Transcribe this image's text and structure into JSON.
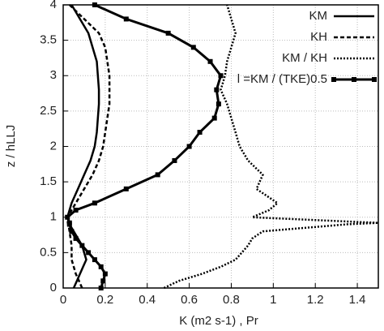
{
  "chart_data": {
    "type": "line",
    "x_label": "K (m2 s-1) , Pr",
    "y_label": "z / hLLJ",
    "y": [
      0,
      0.1,
      0.2,
      0.3,
      0.4,
      0.5,
      0.6,
      0.7,
      0.8,
      0.9,
      0.92,
      1.0,
      1.1,
      1.2,
      1.4,
      1.6,
      1.8,
      2.0,
      2.2,
      2.4,
      2.6,
      2.8,
      3.0,
      3.2,
      3.4,
      3.6,
      3.8,
      4.0
    ],
    "series": [
      {
        "name": "KM",
        "color": "#000000",
        "style": "solid",
        "linewidth": 2.5,
        "marker": false,
        "values": [
          0.05,
          0.065,
          0.08,
          0.095,
          0.11,
          0.1,
          0.09,
          0.07,
          0.05,
          0.03,
          0.028,
          0.02,
          0.03,
          0.04,
          0.07,
          0.1,
          0.13,
          0.15,
          0.16,
          0.165,
          0.17,
          0.17,
          0.165,
          0.16,
          0.14,
          0.12,
          0.08,
          0.04
        ]
      },
      {
        "name": "KH",
        "color": "#000000",
        "style": "dashed",
        "linewidth": 2.5,
        "marker": false,
        "values": [
          0.09,
          0.075,
          0.06,
          0.05,
          0.04,
          0.04,
          0.04,
          0.035,
          0.03,
          0.025,
          0.022,
          0.02,
          0.04,
          0.06,
          0.1,
          0.14,
          0.17,
          0.19,
          0.2,
          0.21,
          0.22,
          0.22,
          0.22,
          0.21,
          0.2,
          0.17,
          0.1,
          0.03
        ]
      },
      {
        "name": "KM / KH",
        "color": "#000000",
        "style": "dotted",
        "linewidth": 2.5,
        "marker": false,
        "values": [
          0.48,
          0.55,
          0.66,
          0.75,
          0.82,
          0.85,
          0.88,
          0.9,
          0.95,
          1.35,
          1.5,
          0.9,
          0.98,
          1.02,
          0.92,
          0.95,
          0.88,
          0.84,
          0.82,
          0.8,
          0.78,
          0.75,
          0.77,
          0.78,
          0.8,
          0.82,
          0.8,
          0.78
        ]
      },
      {
        "name": "l =KM / (TKE)0.5",
        "color": "#000000",
        "style": "solid",
        "linewidth": 3,
        "marker": true,
        "values": [
          0.18,
          0.19,
          0.2,
          0.18,
          0.15,
          0.12,
          0.09,
          0.06,
          0.04,
          0.03,
          0.03,
          0.02,
          0.06,
          0.15,
          0.3,
          0.45,
          0.53,
          0.6,
          0.65,
          0.72,
          0.74,
          0.73,
          0.75,
          0.7,
          0.62,
          0.5,
          0.3,
          0.15
        ]
      }
    ],
    "xlim": [
      0,
      1.5
    ],
    "xticks": [
      0,
      0.2,
      0.4,
      0.6,
      0.8,
      1,
      1.2,
      1.4
    ],
    "ylim": [
      0,
      4
    ],
    "yticks": [
      0,
      0.5,
      1,
      1.5,
      2,
      2.5,
      3,
      3.5,
      4
    ],
    "grid": true,
    "legend": "top-right"
  }
}
